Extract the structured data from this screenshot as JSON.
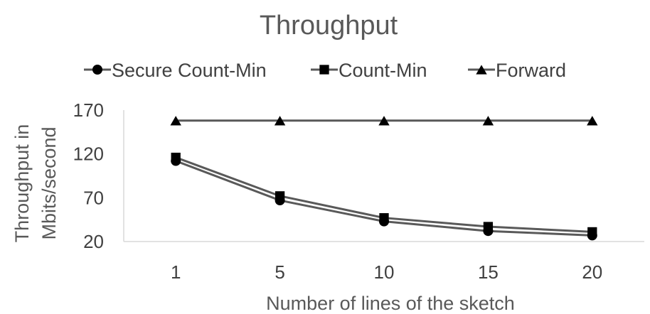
{
  "chart_data": {
    "type": "line",
    "title": "Throughput",
    "xlabel": "Number of lines of the sketch",
    "ylabel": [
      "Throughput in",
      "Mbits/second"
    ],
    "categories": [
      "1",
      "5",
      "10",
      "15",
      "20"
    ],
    "ylim": [
      20,
      170
    ],
    "yticks": [
      "20",
      "70",
      "120",
      "170"
    ],
    "grid": false,
    "legend": "top",
    "series": [
      {
        "name": "Secure Count-Min",
        "marker": "circle",
        "color": "#000000",
        "line_color": "#595959",
        "values": [
          112,
          67,
          43,
          32,
          27
        ]
      },
      {
        "name": "Count-Min",
        "marker": "square",
        "color": "#000000",
        "line_color": "#595959",
        "values": [
          116,
          72,
          47,
          37,
          31
        ]
      },
      {
        "name": "Forward",
        "marker": "triangle",
        "color": "#000000",
        "line_color": "#595959",
        "values": [
          158,
          158,
          158,
          158,
          158
        ]
      }
    ]
  }
}
